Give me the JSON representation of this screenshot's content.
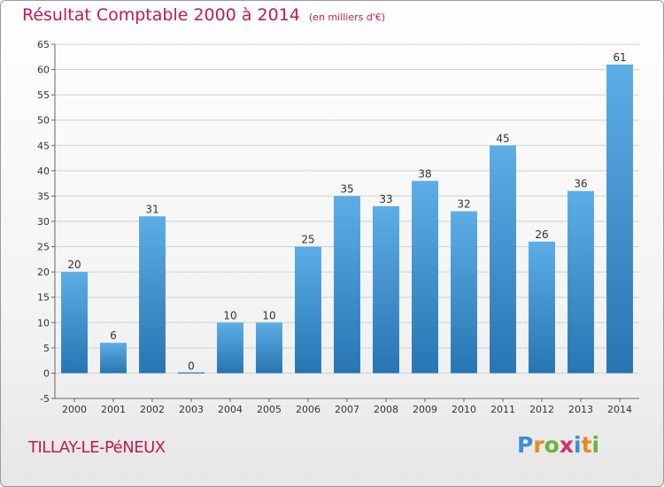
{
  "header": {
    "title": "Résultat Comptable 2000 à 2014",
    "subtitle": "(en milliers d'€)"
  },
  "footer": {
    "town": "TILLAY-LE-PéNEUX",
    "logo": "Proxiti"
  },
  "colors": {
    "bar_top": "#5dade6",
    "bar_bottom": "#2775b2",
    "title": "#c2185b",
    "grid": "#d0d0d0"
  },
  "chart_data": {
    "type": "bar",
    "title": "Résultat Comptable 2000 à 2014",
    "subtitle": "(en milliers d'€)",
    "xlabel": "",
    "ylabel": "",
    "categories": [
      "2000",
      "2001",
      "2002",
      "2003",
      "2004",
      "2005",
      "2006",
      "2007",
      "2008",
      "2009",
      "2010",
      "2011",
      "2012",
      "2013",
      "2014"
    ],
    "values": [
      20,
      6,
      31,
      0,
      10,
      10,
      25,
      35,
      33,
      38,
      32,
      45,
      26,
      36,
      61
    ],
    "ylim": [
      -5,
      65
    ],
    "yticks": [
      -5,
      0,
      5,
      10,
      15,
      20,
      25,
      30,
      35,
      40,
      45,
      50,
      55,
      60,
      65
    ],
    "grid": true
  }
}
